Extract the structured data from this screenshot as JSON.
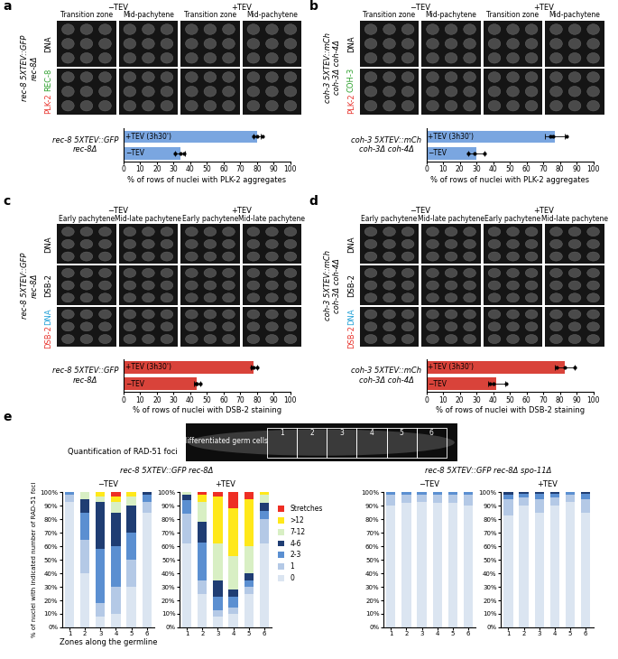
{
  "image_panels": [
    {
      "panel": "a",
      "genotype": "rec-8 5XTEV::GFP\nrec-8Δ",
      "conditions": [
        "−TEV",
        "+TEV"
      ],
      "columns": [
        "Transition zone",
        "Mid-pachytene",
        "Transition zone",
        "Mid-pachytene"
      ],
      "rows": [
        [
          {
            "text": "DNA",
            "color": "#000000"
          }
        ],
        [
          {
            "text": "PLK-2",
            "color": "#e8322b"
          },
          {
            "text": "REC-8",
            "color": "#2ca02c"
          }
        ]
      ]
    },
    {
      "panel": "b",
      "genotype": "coh-3 5XTEV::mCh\ncoh-3Δ coh-4Δ",
      "conditions": [
        "−TEV",
        "+TEV"
      ],
      "columns": [
        "Transition zone",
        "Mid-pachytene",
        "Transition zone",
        "Mid-pachytene"
      ],
      "rows": [
        [
          {
            "text": "DNA",
            "color": "#000000"
          }
        ],
        [
          {
            "text": "PLK-2",
            "color": "#e8322b"
          },
          {
            "text": "COH-3",
            "color": "#2ca02c"
          }
        ]
      ]
    },
    {
      "panel": "c",
      "genotype": "rec-8 5XTEV::GFP\nrec-8Δ",
      "conditions": [
        "−TEV",
        "+TEV"
      ],
      "columns": [
        "Early pachytene",
        "Mid-late pachytene",
        "Early pachytene",
        "Mid-late pachytene"
      ],
      "rows": [
        [
          {
            "text": "DNA",
            "color": "#000000"
          }
        ],
        [
          {
            "text": "DSB-2",
            "color": "#000000"
          }
        ],
        [
          {
            "text": "DSB-2",
            "color": "#e8322b"
          },
          {
            "text": "DNA",
            "color": "#1f9fd6"
          }
        ]
      ]
    },
    {
      "panel": "d",
      "genotype": "coh-3 5XTEV::mCh\ncoh-3Δ coh-4Δ",
      "conditions": [
        "−TEV",
        "+TEV"
      ],
      "columns": [
        "Early pachytene",
        "Mid-late pachytene",
        "Early pachytene",
        "Mid-late pachytene"
      ],
      "rows": [
        [
          {
            "text": "DNA",
            "color": "#000000"
          }
        ],
        [
          {
            "text": "DSB-2",
            "color": "#000000"
          }
        ],
        [
          {
            "text": "DSB-2",
            "color": "#e8322b"
          },
          {
            "text": "DNA",
            "color": "#1f9fd6"
          }
        ]
      ]
    }
  ],
  "germline": {
    "panel": "e",
    "title": "Quantification of RAD-51 foci",
    "labels": [
      "Undifferentiated germ cells",
      "1",
      "2",
      "3",
      "4",
      "5",
      "6"
    ]
  },
  "chart_data": [
    {
      "type": "bar",
      "orientation": "horizontal",
      "categories": [
        "−TEV",
        "+TEV (3h30')"
      ],
      "values": [
        34,
        80
      ],
      "errors": [
        3,
        2
      ],
      "points": [
        [
          31,
          34,
          36
        ],
        [
          78,
          80,
          83
        ]
      ],
      "color": "#7aa6e0",
      "xlabel": "% of rows of nuclei with PLK-2 aggregates",
      "ylabel": "rec-8 5XTEV::GFP\nrec-8Δ",
      "xlim": [
        0,
        100
      ],
      "xticks": [
        0,
        10,
        20,
        30,
        40,
        50,
        60,
        70,
        80,
        90,
        100
      ],
      "tick_labels": "x"
    },
    {
      "type": "bar",
      "orientation": "horizontal",
      "categories": [
        "−TEV",
        "+TEV (3h30')"
      ],
      "values": [
        30,
        77
      ],
      "errors": [
        5,
        6
      ],
      "points": [
        [
          25,
          29,
          35
        ],
        [
          74,
          76,
          84
        ]
      ],
      "color": "#7aa6e0",
      "xlabel": "% of rows of nuclei with PLK-2 aggregates",
      "ylabel": "coh-3 5XTEV::mCh\ncoh-3Δ coh-4Δ",
      "xlim": [
        0,
        100
      ],
      "xticks": [
        0,
        10,
        20,
        30,
        40,
        50,
        60,
        70,
        80,
        90,
        100
      ],
      "tick_labels": "x"
    },
    {
      "type": "bar",
      "orientation": "horizontal",
      "categories": [
        "−TEV",
        "+TEV (3h30')"
      ],
      "values": [
        44,
        78
      ],
      "errors": [
        2,
        2
      ],
      "points": [
        [
          43,
          44,
          46
        ],
        [
          77,
          78,
          80
        ]
      ],
      "color": "#d9433a",
      "xlabel": "% of rows of nuclei with DSB-2 staining",
      "ylabel": "rec-8 5XTEV::GFP\nrec-8Δ",
      "xlim": [
        0,
        100
      ],
      "xticks": [
        0,
        10,
        20,
        30,
        40,
        50,
        60,
        70,
        80,
        90,
        100
      ],
      "tick_labels": "x"
    },
    {
      "type": "bar",
      "orientation": "horizontal",
      "categories": [
        "−TEV",
        "+TEV (3h30')"
      ],
      "values": [
        42,
        83
      ],
      "errors": [
        5,
        6
      ],
      "points": [
        [
          38,
          40,
          48
        ],
        [
          78,
          83,
          89
        ]
      ],
      "color": "#d9433a",
      "xlabel": "% of rows of nuclei with DSB-2 staining",
      "ylabel": "coh-3 5XTEV::mCh\ncoh-3Δ coh-4Δ",
      "xlim": [
        0,
        100
      ],
      "xticks": [
        0,
        10,
        20,
        30,
        40,
        50,
        60,
        70,
        80,
        90,
        100
      ],
      "tick_labels": "x"
    },
    {
      "type": "bar",
      "stacked": true,
      "title": "−TEV",
      "subtitle": "rec-8 5XTEV::GFP rec-8Δ",
      "ylabel": "% of nuclei with indicated number of RAD-51 foci",
      "xlabel": "Zones along the germline",
      "categories": [
        "1",
        "2",
        "3",
        "4",
        "5",
        "6"
      ],
      "ylim": [
        0,
        100
      ],
      "yticks": [
        {
          "value": 0,
          "label": "0%"
        },
        {
          "value": 10,
          "label": "10%"
        },
        {
          "value": 20,
          "label": "20%"
        },
        {
          "value": 30,
          "label": "30%"
        },
        {
          "value": 40,
          "label": "40%"
        },
        {
          "value": 50,
          "label": "50%"
        },
        {
          "value": 60,
          "label": "60%"
        },
        {
          "value": 70,
          "label": "70%"
        },
        {
          "value": 80,
          "label": "80%"
        },
        {
          "value": 90,
          "label": "90%"
        },
        {
          "value": 100,
          "label": "100%"
        }
      ],
      "series": [
        {
          "name": "0",
          "color": "#dbe5f1",
          "values": [
            93,
            40,
            8,
            10,
            30,
            85
          ]
        },
        {
          "name": "1",
          "color": "#b4c9e6",
          "values": [
            5,
            25,
            10,
            20,
            20,
            8
          ]
        },
        {
          "name": "2-3",
          "color": "#5b8fd1",
          "values": [
            2,
            20,
            40,
            30,
            20,
            5
          ]
        },
        {
          "name": "4-6",
          "color": "#1f3d73",
          "values": [
            0,
            10,
            35,
            25,
            20,
            2
          ]
        },
        {
          "name": "7-12",
          "color": "#d8efc4",
          "values": [
            0,
            5,
            4,
            8,
            7,
            0
          ]
        },
        {
          "name": ">12",
          "color": "#ffe81a",
          "values": [
            0,
            0,
            3,
            4,
            3,
            0
          ]
        },
        {
          "name": "Stretches",
          "color": "#ee2e24",
          "values": [
            0,
            0,
            0,
            3,
            0,
            0
          ]
        }
      ]
    },
    {
      "type": "bar",
      "stacked": true,
      "title": "+TEV",
      "legend": "center left",
      "categories": [
        "1",
        "2",
        "3",
        "4",
        "5",
        "6"
      ],
      "ylim": [
        0,
        100
      ],
      "yticks": [
        {
          "value": 0,
          "label": "0%"
        },
        {
          "value": 10,
          "label": "10%"
        },
        {
          "value": 20,
          "label": "20%"
        },
        {
          "value": 30,
          "label": "30%"
        },
        {
          "value": 40,
          "label": "40%"
        },
        {
          "value": 50,
          "label": "50%"
        },
        {
          "value": 60,
          "label": "60%"
        },
        {
          "value": 70,
          "label": "70%"
        },
        {
          "value": 80,
          "label": "80%"
        },
        {
          "value": 90,
          "label": "90%"
        },
        {
          "value": 100,
          "label": "100%"
        }
      ],
      "series": [
        {
          "name": "0",
          "color": "#dbe5f1",
          "values": [
            62,
            25,
            8,
            10,
            25,
            62
          ]
        },
        {
          "name": "1",
          "color": "#b4c9e6",
          "values": [
            22,
            10,
            5,
            5,
            5,
            18
          ]
        },
        {
          "name": "2-3",
          "color": "#5b8fd1",
          "values": [
            10,
            28,
            10,
            8,
            5,
            6
          ]
        },
        {
          "name": "4-6",
          "color": "#1f3d73",
          "values": [
            4,
            15,
            12,
            5,
            5,
            6
          ]
        },
        {
          "name": "7-12",
          "color": "#d8efc4",
          "values": [
            2,
            15,
            27,
            25,
            20,
            6
          ]
        },
        {
          "name": ">12",
          "color": "#ffe81a",
          "values": [
            0,
            5,
            35,
            35,
            35,
            2
          ]
        },
        {
          "name": "Stretches",
          "color": "#ee2e24",
          "values": [
            0,
            2,
            3,
            12,
            5,
            0
          ]
        }
      ]
    },
    {
      "type": "bar",
      "stacked": true,
      "title": "−TEV",
      "subtitle": "rec-8 5XTEV::GFP rec-8Δ spo-11Δ",
      "categories": [
        "1",
        "2",
        "3",
        "4",
        "5",
        "6"
      ],
      "ylim": [
        0,
        100
      ],
      "yticks": [
        {
          "value": 0,
          "label": "0%"
        },
        {
          "value": 10,
          "label": "10%"
        },
        {
          "value": 20,
          "label": "20%"
        },
        {
          "value": 30,
          "label": "30%"
        },
        {
          "value": 40,
          "label": "40%"
        },
        {
          "value": 50,
          "label": "50%"
        },
        {
          "value": 60,
          "label": "60%"
        },
        {
          "value": 70,
          "label": "70%"
        },
        {
          "value": 80,
          "label": "80%"
        },
        {
          "value": 90,
          "label": "90%"
        },
        {
          "value": 100,
          "label": "100%"
        }
      ],
      "series": [
        {
          "name": "0",
          "color": "#dbe5f1",
          "values": [
            90,
            92,
            93,
            92,
            92,
            90
          ]
        },
        {
          "name": "1",
          "color": "#b4c9e6",
          "values": [
            8,
            6,
            5,
            6,
            6,
            8
          ]
        },
        {
          "name": "2-3",
          "color": "#5b8fd1",
          "values": [
            2,
            2,
            2,
            2,
            2,
            2
          ]
        },
        {
          "name": "4-6",
          "color": "#1f3d73",
          "values": [
            0,
            0,
            0,
            0,
            0,
            0
          ]
        },
        {
          "name": "7-12",
          "color": "#d8efc4",
          "values": [
            0,
            0,
            0,
            0,
            0,
            0
          ]
        },
        {
          "name": ">12",
          "color": "#ffe81a",
          "values": [
            0,
            0,
            0,
            0,
            0,
            0
          ]
        },
        {
          "name": "Stretches",
          "color": "#ee2e24",
          "values": [
            0,
            0,
            0,
            0,
            0,
            0
          ]
        }
      ]
    },
    {
      "type": "bar",
      "stacked": true,
      "title": "+TEV",
      "categories": [
        "1",
        "2",
        "3",
        "4",
        "5",
        "6"
      ],
      "ylim": [
        0,
        100
      ],
      "yticks": [
        {
          "value": 0,
          "label": "0%"
        },
        {
          "value": 10,
          "label": "10%"
        },
        {
          "value": 20,
          "label": "20%"
        },
        {
          "value": 30,
          "label": "30%"
        },
        {
          "value": 40,
          "label": "40%"
        },
        {
          "value": 50,
          "label": "50%"
        },
        {
          "value": 60,
          "label": "60%"
        },
        {
          "value": 70,
          "label": "70%"
        },
        {
          "value": 80,
          "label": "80%"
        },
        {
          "value": 90,
          "label": "90%"
        },
        {
          "value": 100,
          "label": "100%"
        }
      ],
      "series": [
        {
          "name": "0",
          "color": "#dbe5f1",
          "values": [
            83,
            90,
            85,
            90,
            93,
            85
          ]
        },
        {
          "name": "1",
          "color": "#b4c9e6",
          "values": [
            12,
            6,
            10,
            6,
            5,
            10
          ]
        },
        {
          "name": "2-3",
          "color": "#5b8fd1",
          "values": [
            3,
            3,
            4,
            3,
            2,
            4
          ]
        },
        {
          "name": "4-6",
          "color": "#1f3d73",
          "values": [
            2,
            1,
            1,
            1,
            0,
            1
          ]
        },
        {
          "name": "7-12",
          "color": "#d8efc4",
          "values": [
            0,
            0,
            0,
            0,
            0,
            0
          ]
        },
        {
          "name": ">12",
          "color": "#ffe81a",
          "values": [
            0,
            0,
            0,
            0,
            0,
            0
          ]
        },
        {
          "name": "Stretches",
          "color": "#ee2e24",
          "values": [
            0,
            0,
            0,
            0,
            0,
            0
          ]
        }
      ]
    }
  ]
}
